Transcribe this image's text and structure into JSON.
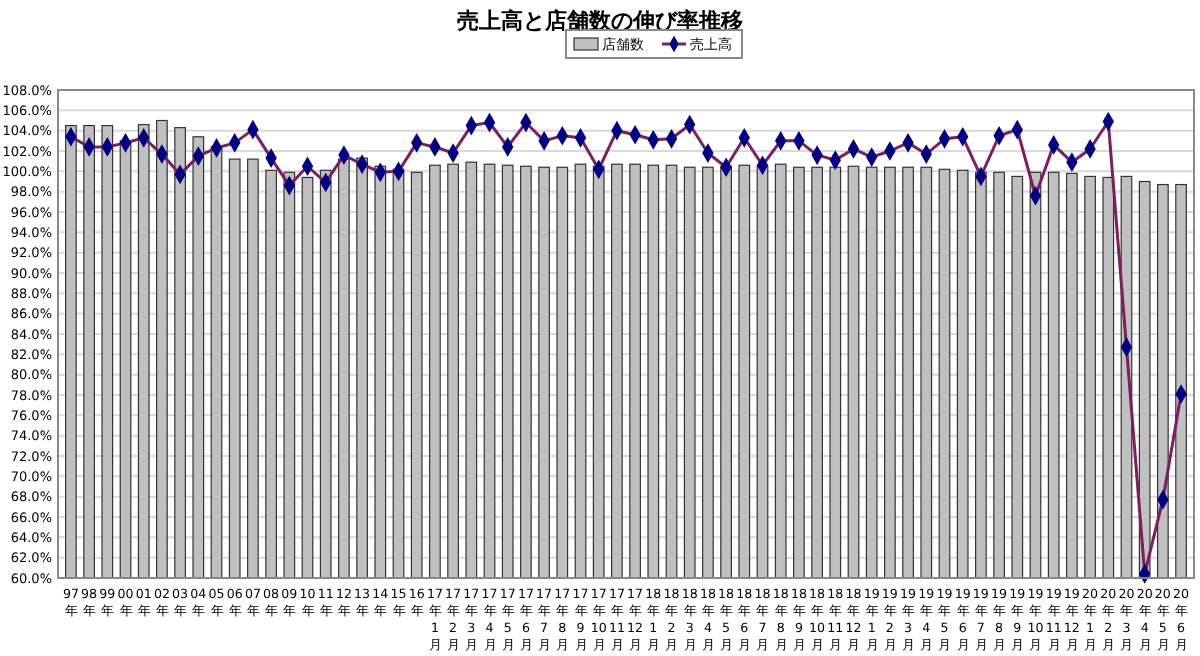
{
  "chart_data": {
    "type": "bar",
    "title": "売上高と店舗数の伸び率推移",
    "categories": [
      "97年",
      "98年",
      "99年",
      "00年",
      "01年",
      "02年",
      "03年",
      "04年",
      "05年",
      "06年",
      "07年",
      "08年",
      "09年",
      "10年",
      "11年",
      "12年",
      "13年",
      "14年",
      "15年",
      "16年",
      "17年1月",
      "17年2月",
      "17年3月",
      "17年4月",
      "17年5月",
      "17年6月",
      "17年7月",
      "17年8月",
      "17年9月",
      "17年10月",
      "17年11月",
      "17年12月",
      "18年1月",
      "18年2月",
      "18年3月",
      "18年4月",
      "18年5月",
      "18年6月",
      "18年7月",
      "18年8月",
      "18年9月",
      "18年10月",
      "18年11月",
      "18年12月",
      "19年1月",
      "19年2月",
      "19年3月",
      "19年4月",
      "19年5月",
      "19年6月",
      "19年7月",
      "19年8月",
      "19年9月",
      "19年10月",
      "19年11月",
      "19年12月",
      "20年1月",
      "20年2月",
      "20年3月",
      "20年4月",
      "20年5月",
      "20年6月"
    ],
    "series": [
      {
        "name": "店舗数",
        "color": "#c0c0c0",
        "values": [
          104.5,
          104.5,
          104.5,
          103.0,
          104.6,
          105.0,
          104.3,
          103.4,
          102.4,
          101.2,
          101.2,
          100.1,
          99.9,
          99.4,
          100.1,
          101.2,
          101.3,
          100.5,
          100.2,
          99.9,
          100.6,
          100.7,
          100.9,
          100.7,
          100.6,
          100.5,
          100.4,
          100.4,
          100.7,
          100.5,
          100.7,
          100.7,
          100.6,
          100.6,
          100.4,
          100.4,
          100.5,
          100.6,
          100.5,
          100.7,
          100.4,
          100.4,
          100.4,
          100.5,
          100.4,
          100.4,
          100.4,
          100.4,
          100.2,
          100.1,
          99.9,
          99.9,
          99.5,
          99.9,
          99.9,
          99.8,
          99.5,
          99.4,
          99.5,
          99.0,
          98.7,
          98.7
        ]
      },
      {
        "name": "売上高",
        "type": "line",
        "color": "#7b1f5e",
        "values": [
          103.4,
          102.4,
          102.4,
          102.8,
          103.3,
          101.7,
          99.7,
          101.5,
          102.3,
          102.8,
          104.1,
          101.3,
          98.6,
          100.5,
          98.9,
          101.6,
          100.7,
          99.9,
          100.0,
          102.8,
          102.4,
          101.8,
          104.5,
          104.8,
          102.4,
          104.8,
          103.0,
          103.5,
          103.3,
          100.2,
          104.0,
          103.6,
          103.1,
          103.2,
          104.6,
          101.8,
          100.4,
          103.3,
          100.6,
          103.0,
          103.0,
          101.6,
          101.1,
          102.2,
          101.4,
          102.0,
          102.8,
          101.7,
          103.2,
          103.4,
          99.5,
          103.5,
          104.1,
          97.6,
          102.6,
          100.9,
          102.2,
          104.9,
          82.7,
          60.4,
          67.7,
          78.1
        ]
      }
    ],
    "ylim": [
      60,
      108
    ],
    "yticks": [
      {
        "value": 60,
        "label": "60.0%"
      },
      {
        "value": 62,
        "label": "62.0%"
      },
      {
        "value": 64,
        "label": "64.0%"
      },
      {
        "value": 66,
        "label": "66.0%"
      },
      {
        "value": 68,
        "label": "68.0%"
      },
      {
        "value": 70,
        "label": "70.0%"
      },
      {
        "value": 72,
        "label": "72.0%"
      },
      {
        "value": 74,
        "label": "74.0%"
      },
      {
        "value": 76,
        "label": "76.0%"
      },
      {
        "value": 78,
        "label": "78.0%"
      },
      {
        "value": 80,
        "label": "80.0%"
      },
      {
        "value": 82,
        "label": "82.0%"
      },
      {
        "value": 84,
        "label": "84.0%"
      },
      {
        "value": 86,
        "label": "86.0%"
      },
      {
        "value": 88,
        "label": "88.0%"
      },
      {
        "value": 90,
        "label": "90.0%"
      },
      {
        "value": 92,
        "label": "92.0%"
      },
      {
        "value": 94,
        "label": "94.0%"
      },
      {
        "value": 96,
        "label": "96.0%"
      },
      {
        "value": 98,
        "label": "98.0%"
      },
      {
        "value": 100,
        "label": "100.0%"
      },
      {
        "value": 102,
        "label": "102.0%"
      },
      {
        "value": 104,
        "label": "104.0%"
      },
      {
        "value": 106,
        "label": "106.0%"
      },
      {
        "value": 108,
        "label": "108.0%"
      }
    ],
    "grid": "y",
    "legend": "top",
    "marker": "diamond"
  }
}
